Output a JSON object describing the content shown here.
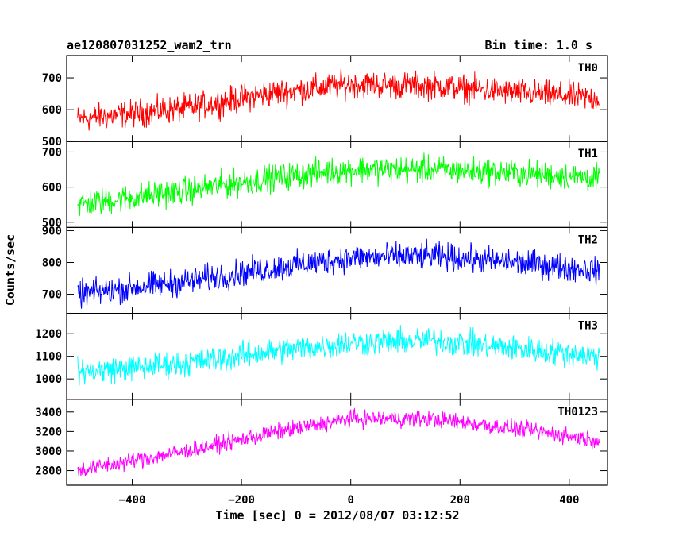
{
  "header": {
    "title": "ae120807031252_wam2_trn",
    "bin_time": "Bin time: 1.0 s"
  },
  "chart_data": {
    "type": "line",
    "title": "ae120807031252_wam2_trn",
    "xlabel": "Time [sec] 0 = 2012/08/07 03:12:52",
    "ylabel": "Counts/sec",
    "xlim": [
      -520,
      470
    ],
    "x_ticks": [
      -400,
      -200,
      0,
      200,
      400
    ],
    "x_data_range": [
      -500,
      455
    ],
    "bin_time_s": 1.0,
    "grid": false,
    "panels": [
      {
        "name": "TH0",
        "color": "#ff0000",
        "ylim": [
          500,
          770
        ],
        "y_ticks": [
          500,
          600,
          700
        ],
        "trend": {
          "x": [
            -500,
            -300,
            -150,
            0,
            150,
            300,
            455
          ],
          "y": [
            570,
            605,
            650,
            680,
            675,
            655,
            635
          ]
        },
        "noise_halfwidth": 55
      },
      {
        "name": "TH1",
        "color": "#00ff00",
        "ylim": [
          485,
          730
        ],
        "y_ticks": [
          500,
          600,
          700
        ],
        "trend": {
          "x": [
            -500,
            -300,
            -150,
            0,
            150,
            300,
            455
          ],
          "y": [
            550,
            590,
            625,
            650,
            650,
            640,
            625
          ]
        },
        "noise_halfwidth": 50
      },
      {
        "name": "TH2",
        "color": "#0000ff",
        "ylim": [
          640,
          910
        ],
        "y_ticks": [
          700,
          800,
          900
        ],
        "trend": {
          "x": [
            -500,
            -300,
            -150,
            0,
            150,
            300,
            455
          ],
          "y": [
            700,
            740,
            780,
            815,
            820,
            800,
            775
          ]
        },
        "noise_halfwidth": 55
      },
      {
        "name": "TH3",
        "color": "#00ffff",
        "ylim": [
          910,
          1290
        ],
        "y_ticks": [
          1000,
          1100,
          1200
        ],
        "trend": {
          "x": [
            -500,
            -300,
            -150,
            0,
            150,
            300,
            455
          ],
          "y": [
            1030,
            1070,
            1120,
            1160,
            1170,
            1135,
            1100
          ]
        },
        "noise_halfwidth": 75
      },
      {
        "name": "TH0123",
        "color": "#ff00ff",
        "ylim": [
          2650,
          3530
        ],
        "y_ticks": [
          2800,
          3000,
          3200,
          3400
        ],
        "trend": {
          "x": [
            -500,
            -300,
            -150,
            0,
            150,
            300,
            455
          ],
          "y": [
            2800,
            3000,
            3180,
            3330,
            3330,
            3230,
            3110
          ]
        },
        "noise_halfwidth": 110
      }
    ]
  }
}
